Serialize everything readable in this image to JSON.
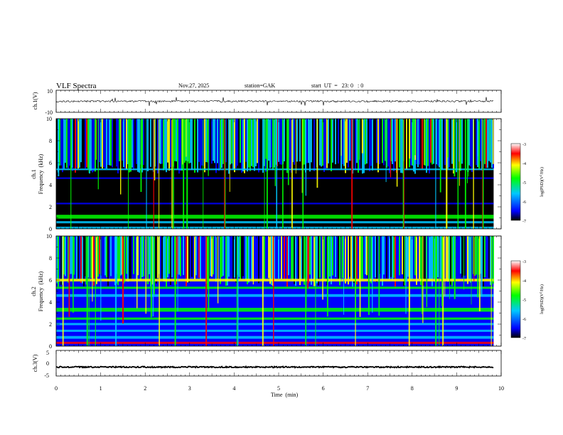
{
  "header": {
    "title": "VLF  Spectra",
    "date": "Nov.27, 2025",
    "station": "station=GAK",
    "start": "start  UT  =   23: 0   : 0"
  },
  "chart_data": [
    {
      "type": "line",
      "id": "ch1-waveform",
      "ylabel": "ch.1(V)",
      "ylim": [
        -10,
        10
      ],
      "y_ticks": [
        "10",
        "-10"
      ],
      "baseline": 0,
      "color": "#000000"
    },
    {
      "type": "heatmap",
      "id": "ch1-spectrogram",
      "ylabel_line1": "ch.1",
      "ylabel_line2": "Frequency  (kHz)",
      "ylim": [
        0,
        10
      ],
      "y_ticks": [
        "0",
        "2",
        "4",
        "6",
        "8",
        "10"
      ],
      "z_label": "log(PSD)(V",
      "z_label_sup": "2",
      "z_label_end": "/Hz)",
      "z_range": [
        -7,
        -3
      ],
      "z_ticks": [
        "-3",
        "-4",
        "-5",
        "-6",
        "-7"
      ]
    },
    {
      "type": "heatmap",
      "id": "ch2-spectrogram",
      "ylabel_line1": "ch.2",
      "ylabel_line2": "Frequency  (kHz)",
      "ylim": [
        0,
        10
      ],
      "y_ticks": [
        "0",
        "2",
        "4",
        "6",
        "8",
        "10"
      ],
      "z_label": "log(PSD)(V",
      "z_label_sup": "2",
      "z_label_end": "/Hz)",
      "z_range": [
        -7,
        -3
      ],
      "z_ticks": [
        "-3",
        "-4",
        "-5",
        "-6",
        "-7"
      ]
    },
    {
      "type": "line",
      "id": "ch3-waveform",
      "ylabel": "ch.3(V)",
      "ylim": [
        -5,
        5
      ],
      "y_ticks": [
        "5",
        "0",
        "-5"
      ],
      "baseline": -1.5,
      "color": "#000000"
    }
  ],
  "x_axis": {
    "label": "Time  (min)",
    "range": [
      0,
      10
    ],
    "data_end": 9.83,
    "ticks": [
      "0",
      "1",
      "2",
      "3",
      "4",
      "5",
      "6",
      "7",
      "8",
      "9",
      "10"
    ]
  },
  "colormap": [
    "#000000",
    "#0000ff",
    "#00c8ff",
    "#00ff00",
    "#ffff00",
    "#ff0000",
    "#ffffff"
  ]
}
